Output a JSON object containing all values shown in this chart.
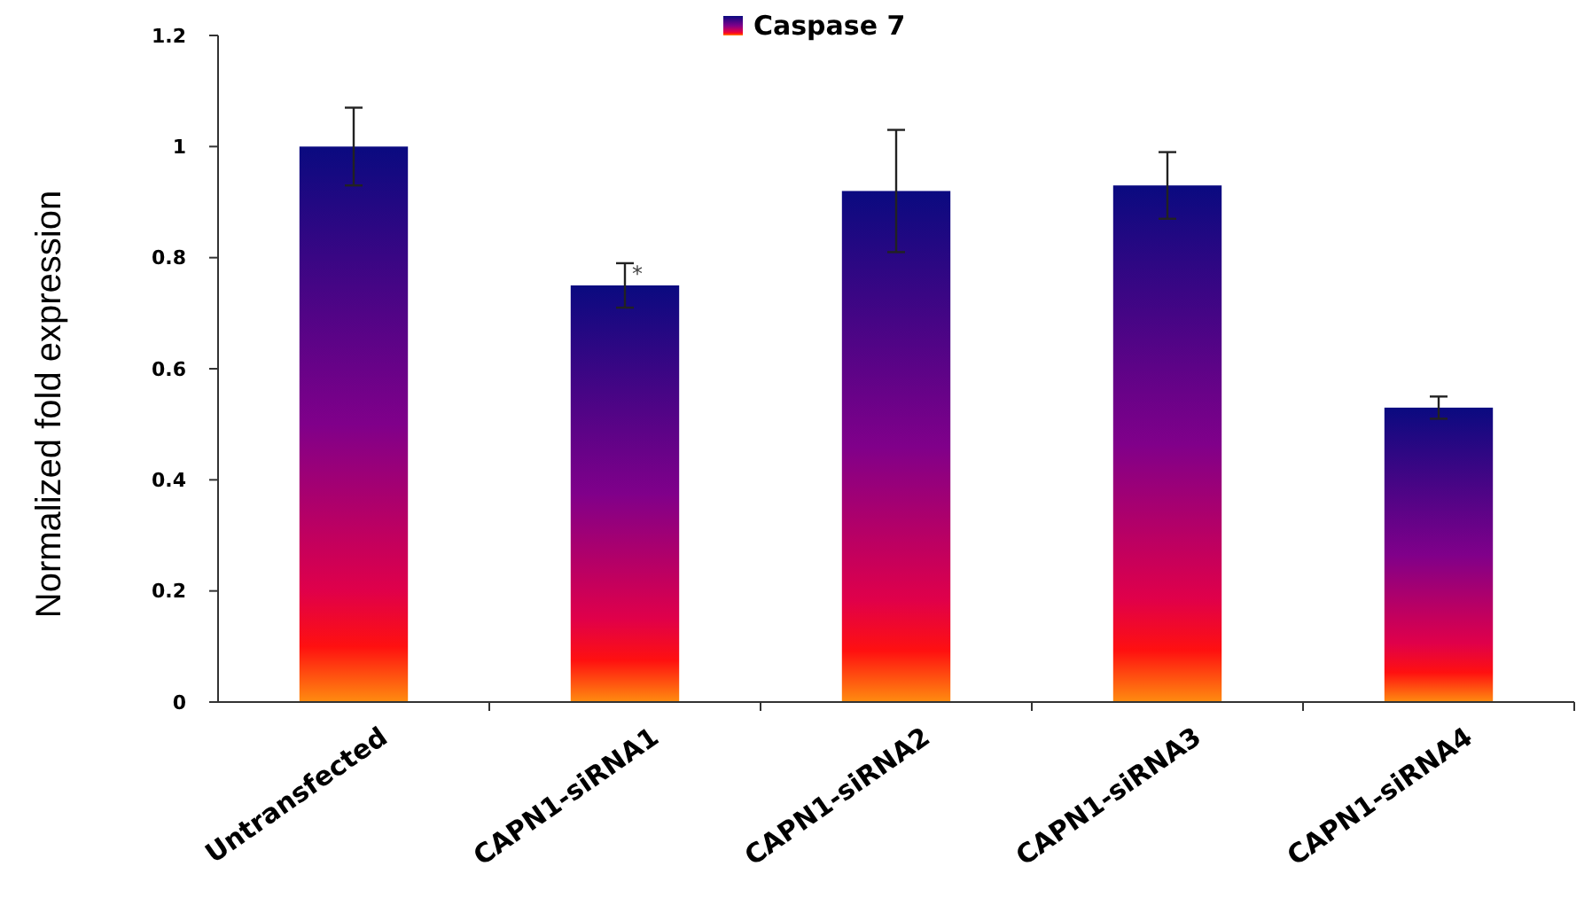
{
  "chart_data": {
    "type": "bar",
    "ylabel": "Normalized fold expression",
    "categories": [
      "Untransfected",
      "CAPN1-siRNA1",
      "CAPN1-siRNA2",
      "CAPN1-siRNA3",
      "CAPN1-siRNA4"
    ],
    "series": [
      {
        "name": "Caspase 7",
        "color": "#0a0a80",
        "values": [
          1.0,
          0.75,
          0.92,
          0.93,
          0.53
        ],
        "errors": [
          0.07,
          0.04,
          0.11,
          0.06,
          0.02
        ]
      }
    ],
    "ylim": [
      0,
      1.2
    ],
    "yticks": [
      0,
      {
        "value": 0.2,
        "label": "0.2"
      },
      {
        "value": 0.4,
        "label": "0.4"
      },
      {
        "value": 0.6,
        "label": "0.6"
      },
      {
        "value": 0.8,
        "label": "0.8"
      },
      1,
      {
        "value": 1.2,
        "label": "1.2"
      }
    ],
    "annotations": [
      {
        "text": "*",
        "x": "CAPN1-siRNA1",
        "y": 0.75
      }
    ],
    "grid": false,
    "legend": "top"
  }
}
